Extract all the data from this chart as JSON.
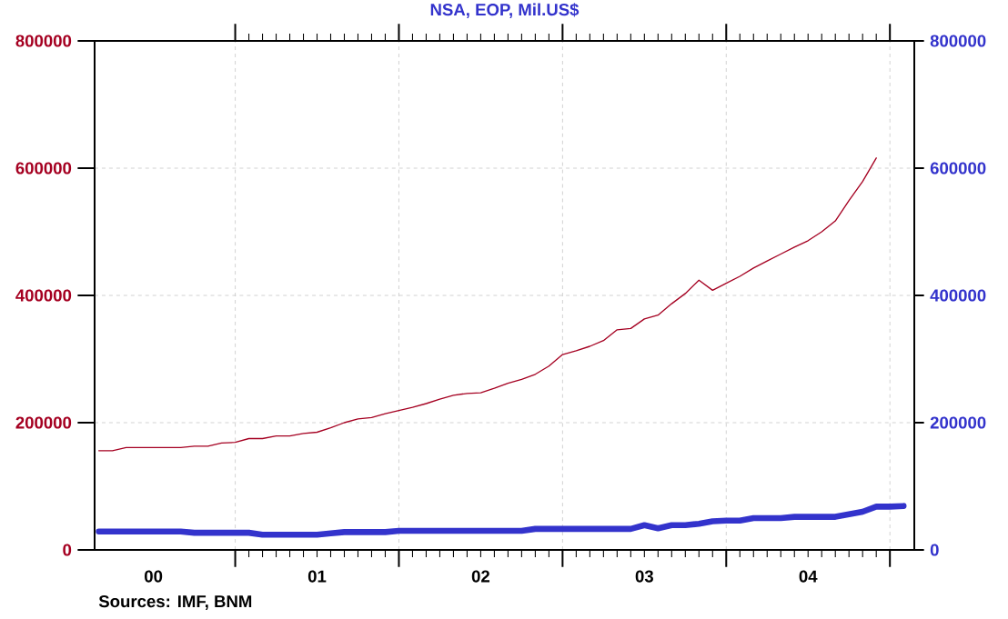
{
  "chart_data": {
    "type": "line",
    "title": "NSA, EOP, Mil.US$",
    "x": [
      "2000-03",
      "2000-04",
      "2000-05",
      "2000-06",
      "2000-07",
      "2000-08",
      "2000-09",
      "2000-10",
      "2000-11",
      "2000-12",
      "2001-01",
      "2001-02",
      "2001-03",
      "2001-04",
      "2001-05",
      "2001-06",
      "2001-07",
      "2001-08",
      "2001-09",
      "2001-10",
      "2001-11",
      "2001-12",
      "2002-01",
      "2002-02",
      "2002-03",
      "2002-04",
      "2002-05",
      "2002-06",
      "2002-07",
      "2002-08",
      "2002-09",
      "2002-10",
      "2002-11",
      "2002-12",
      "2003-01",
      "2003-02",
      "2003-03",
      "2003-04",
      "2003-05",
      "2003-06",
      "2003-07",
      "2003-08",
      "2003-09",
      "2003-10",
      "2003-11",
      "2003-12",
      "2004-01",
      "2004-02",
      "2004-03",
      "2004-04",
      "2004-05",
      "2004-06",
      "2004-07",
      "2004-08",
      "2004-09",
      "2004-10",
      "2004-11",
      "2004-12",
      "2005-01",
      "2005-02"
    ],
    "series": [
      {
        "color": "#a50021",
        "values": [
          156000,
          156000,
          161000,
          161000,
          161000,
          161000,
          161000,
          163000,
          163000,
          168000,
          169000,
          175000,
          175000,
          179000,
          179000,
          183000,
          185000,
          192000,
          200000,
          206000,
          208000,
          214000,
          219000,
          224000,
          230000,
          237000,
          243000,
          246000,
          247000,
          254000,
          262000,
          268000,
          276000,
          289000,
          307000,
          313000,
          320000,
          329000,
          346000,
          348000,
          363000,
          369000,
          387000,
          403000,
          424000,
          408000,
          419000,
          430000,
          443000,
          454000,
          465000,
          476000,
          486000,
          500000,
          517000,
          549000,
          579000,
          616000,
          null,
          null
        ]
      },
      {
        "color": "#3333cc",
        "axis": "y2",
        "values": [
          29000,
          29000,
          29000,
          29000,
          29000,
          29000,
          29000,
          27000,
          27000,
          27000,
          27000,
          27000,
          24000,
          24000,
          24000,
          24000,
          24000,
          26000,
          28000,
          28000,
          28000,
          28000,
          30000,
          30000,
          30000,
          30000,
          30000,
          30000,
          30000,
          30000,
          30000,
          30000,
          33000,
          33000,
          33000,
          33000,
          33000,
          33000,
          33000,
          33000,
          39000,
          34000,
          39000,
          39000,
          41000,
          45000,
          46000,
          46000,
          50000,
          50000,
          50000,
          52000,
          52000,
          52000,
          52000,
          56000,
          60000,
          68000,
          68000,
          69000
        ]
      }
    ],
    "xlim": [
      "2000-02-22",
      "2005-02-25"
    ],
    "xticks": [
      {
        "value": "2001-01",
        "label": null
      },
      {
        "value": "2002-01",
        "label": null
      },
      {
        "value": "2003-01",
        "label": null
      },
      {
        "value": "2004-01",
        "label": null
      },
      {
        "value": "2005-01",
        "label": null
      },
      {
        "value": "2000-07",
        "label": "00"
      },
      {
        "value": "2001-07",
        "label": "01"
      },
      {
        "value": "2002-07",
        "label": "02"
      },
      {
        "value": "2003-07",
        "label": "03"
      },
      {
        "value": "2004-07",
        "label": "04"
      }
    ],
    "ylim": [
      0,
      800000
    ],
    "yticks": [
      0,
      200000,
      400000,
      600000,
      800000
    ],
    "y2lim": [
      0,
      800000
    ],
    "y2ticks": [
      0,
      200000,
      400000,
      600000,
      800000
    ],
    "grid": true,
    "marker": "none",
    "line_style": "solid",
    "annotations": [
      "Sources:  IMF, BNM"
    ]
  }
}
